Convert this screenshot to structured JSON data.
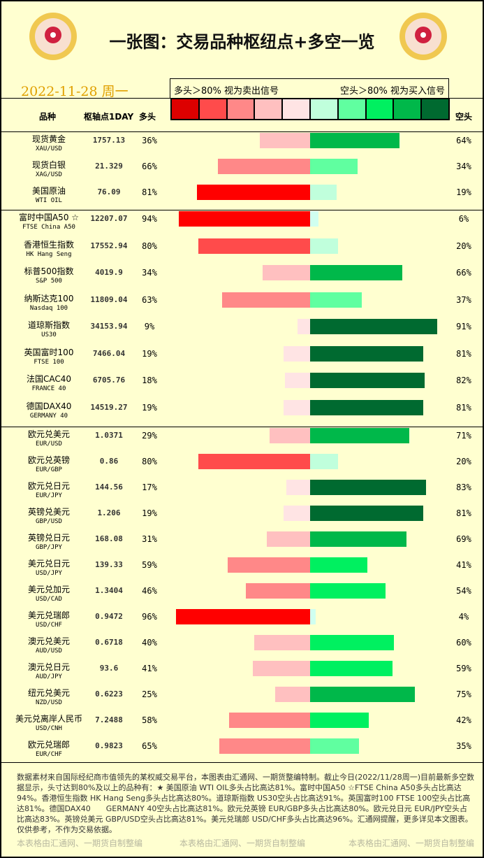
{
  "header": {
    "title": "一张图：交易品种枢纽点+多空一览",
    "date": "2022-11-28 周一",
    "legend_left": "多头＞80% 视为卖出信号",
    "legend_right": "空头＞80% 视为买入信号"
  },
  "columns": {
    "name": "品种",
    "pivot": "枢轴点1DAY",
    "long": "多头",
    "short": "空头"
  },
  "palette": [
    "#dd0000",
    "#ff4b4b",
    "#ff8888",
    "#ffc0c0",
    "#ffe4e4",
    "#c0ffdc",
    "#60ffa0",
    "#00f060",
    "#00b84a",
    "#006a30"
  ],
  "rows": [
    {
      "cn": "现货黄金",
      "en": "XAU/USD",
      "pivot": "1757.13",
      "long": 36,
      "short": 64
    },
    {
      "cn": "现货白银",
      "en": "XAG/USD",
      "pivot": "21.329",
      "long": 66,
      "short": 34
    },
    {
      "cn": "美国原油",
      "en": "WTI OIL",
      "pivot": "76.09",
      "long": 81,
      "short": 19
    },
    {
      "cn": "富时中国A50 ☆",
      "en": "FTSE China A50",
      "pivot": "12207.07",
      "long": 94,
      "short": 6
    },
    {
      "cn": "香港恒生指数",
      "en": "HK Hang Seng",
      "pivot": "17552.94",
      "long": 80,
      "short": 20
    },
    {
      "cn": "标普500指数",
      "en": "S&P 500",
      "pivot": "4019.9",
      "long": 34,
      "short": 66
    },
    {
      "cn": "纳斯达克100",
      "en": "Nasdaq 100",
      "pivot": "11809.04",
      "long": 63,
      "short": 37
    },
    {
      "cn": "道琼斯指数",
      "en": "US30",
      "pivot": "34153.94",
      "long": 9,
      "short": 91
    },
    {
      "cn": "英国富时100",
      "en": "FTSE 100",
      "pivot": "7466.04",
      "long": 19,
      "short": 81
    },
    {
      "cn": "法国CAC40",
      "en": "FRANCE 40",
      "pivot": "6705.76",
      "long": 18,
      "short": 82
    },
    {
      "cn": "德国DAX40",
      "en": "GERMANY 40",
      "pivot": "14519.27",
      "long": 19,
      "short": 81
    },
    {
      "cn": "欧元兑美元",
      "en": "EUR/USD",
      "pivot": "1.0371",
      "long": 29,
      "short": 71
    },
    {
      "cn": "欧元兑英镑",
      "en": "EUR/GBP",
      "pivot": "0.86",
      "long": 80,
      "short": 20
    },
    {
      "cn": "欧元兑日元",
      "en": "EUR/JPY",
      "pivot": "144.56",
      "long": 17,
      "short": 83
    },
    {
      "cn": "英镑兑美元",
      "en": "GBP/USD",
      "pivot": "1.206",
      "long": 19,
      "short": 81
    },
    {
      "cn": "英镑兑日元",
      "en": "GBP/JPY",
      "pivot": "168.08",
      "long": 31,
      "short": 69
    },
    {
      "cn": "美元兑日元",
      "en": "USD/JPY",
      "pivot": "139.33",
      "long": 59,
      "short": 41
    },
    {
      "cn": "美元兑加元",
      "en": "USD/CAD",
      "pivot": "1.3404",
      "long": 46,
      "short": 54
    },
    {
      "cn": "美元兑瑞郎",
      "en": "USD/CHF",
      "pivot": "0.9472",
      "long": 96,
      "short": 4
    },
    {
      "cn": "澳元兑美元",
      "en": "AUD/USD",
      "pivot": "0.6718",
      "long": 40,
      "short": 60
    },
    {
      "cn": "澳元兑日元",
      "en": "AUD/JPY",
      "pivot": "93.6",
      "long": 41,
      "short": 59
    },
    {
      "cn": "纽元兑美元",
      "en": "NZD/USD",
      "pivot": "0.6223",
      "long": 25,
      "short": 75
    },
    {
      "cn": "美元兑离岸人民币",
      "en": "USD/CNH",
      "pivot": "7.2488",
      "long": 58,
      "short": 42
    },
    {
      "cn": "欧元兑瑞郎",
      "en": "EUR/CHF",
      "pivot": "0.9823",
      "long": 65,
      "short": 35
    }
  ],
  "footer": {
    "text": "数据素材来自国际经纪商市值领先的某权威交易平台，本图表由汇通网、一期货整编特制。截止今日(2022/11/28周一)目前最新多空数据显示，头寸达到80%及以上的品种有：★ 美国原油 WTI OIL多头占比高达81%。富时中国A50 ☆FTSE China A50多头占比高达94%。香港恒生指数 HK Hang Seng多头占比高达80%。道琼斯指数 US30空头占比高达91%。英国富时100 FTSE 100空头占比高达81%。德国DAX40　　GERMANY 40空头占比高达81%。欧元兑英镑 EUR/GBP多头占比高达80%。欧元兑日元 EUR/JPY空头占比高达83%。英镑兑美元 GBP/USD空头占比高达81%。美元兑瑞郎 USD/CHF多头占比高达96%。汇通网提醒，更多详见本文图表。仅供参考，不作为交易依据。",
    "watermark": "本表格由汇通网、一期货自制整编"
  }
}
